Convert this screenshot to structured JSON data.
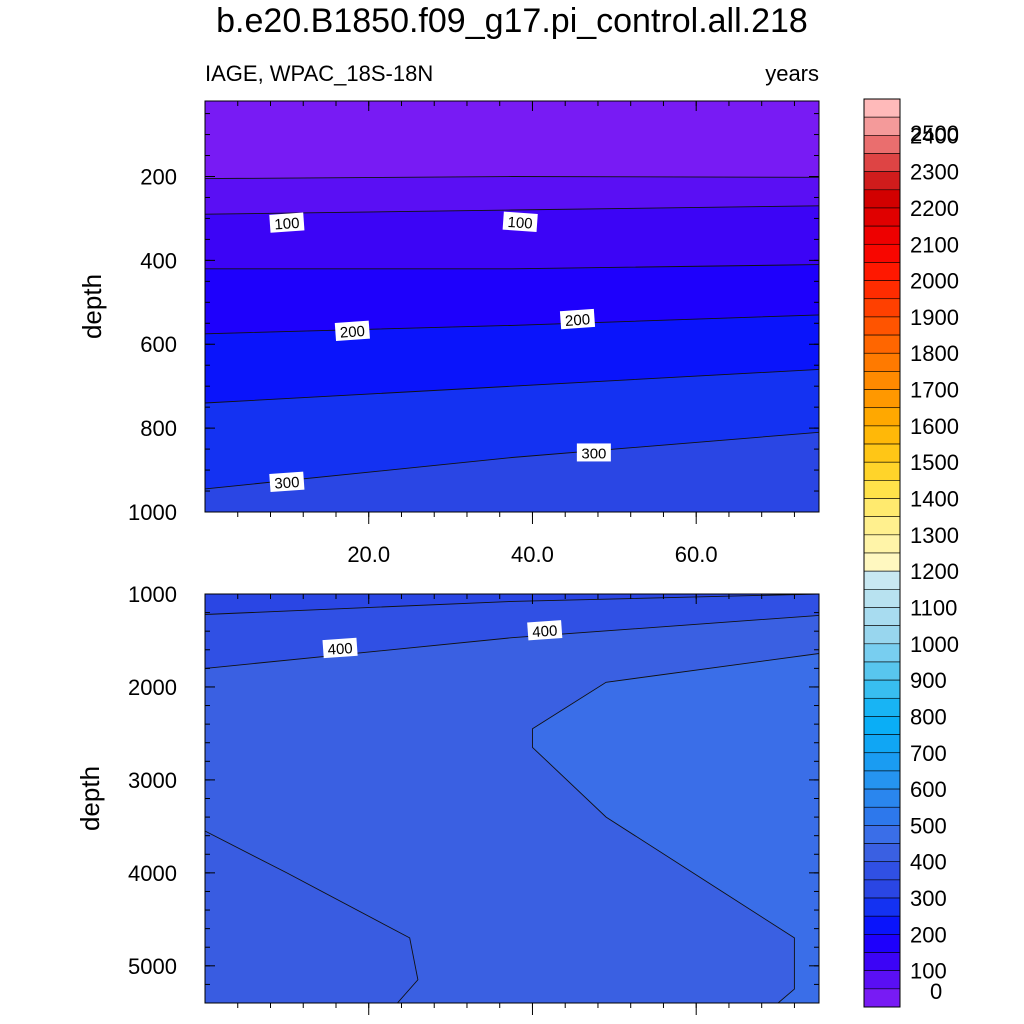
{
  "chart_data": {
    "type": "contour",
    "title": "b.e20.B1850.f09_g17.pi_control.all.218",
    "variable_label": "IAGE, WPAC_18S-18N",
    "units_label": "years",
    "panels": [
      {
        "name": "upper",
        "ylabel": "depth",
        "xlim": [
          0,
          75
        ],
        "ylim": [
          1000,
          20
        ],
        "x_ticks": [
          20.0,
          40.0,
          60.0
        ],
        "x_tick_labels": [
          "20.0",
          "40.0",
          "60.0"
        ],
        "y_ticks": [
          200,
          400,
          600,
          800,
          1000
        ],
        "contour_labels": [
          "100",
          "100",
          "200",
          "200",
          "300",
          "300"
        ],
        "contour_lines": [
          {
            "level": 50,
            "points": [
              [
                0,
                205
              ],
              [
                37.5,
                200
              ],
              [
                75,
                202
              ]
            ]
          },
          {
            "level": 100,
            "points": [
              [
                0,
                290
              ],
              [
                37.5,
                280
              ],
              [
                75,
                270
              ]
            ]
          },
          {
            "level": 150,
            "points": [
              [
                0,
                420
              ],
              [
                37.5,
                420
              ],
              [
                75,
                410
              ]
            ]
          },
          {
            "level": 200,
            "points": [
              [
                0,
                575
              ],
              [
                37.5,
                555
              ],
              [
                75,
                530
              ]
            ]
          },
          {
            "level": 250,
            "points": [
              [
                0,
                740
              ],
              [
                37.5,
                700
              ],
              [
                75,
                660
              ]
            ]
          },
          {
            "level": 300,
            "points": [
              [
                0,
                945
              ],
              [
                37.5,
                870
              ],
              [
                75,
                810
              ]
            ]
          }
        ]
      },
      {
        "name": "lower",
        "ylabel": "depth",
        "xlim": [
          0,
          75
        ],
        "ylim": [
          1000,
          5400
        ],
        "y_ticks": [
          1000,
          2000,
          3000,
          4000,
          5000
        ],
        "contour_labels": [
          "400",
          "400"
        ],
        "contour_lines": [
          {
            "level": 350,
            "points": [
              [
                0,
                1220
              ],
              [
                37.5,
                1080
              ],
              [
                75,
                1000
              ]
            ]
          },
          {
            "level": 400,
            "points": [
              [
                0,
                1800
              ],
              [
                37.5,
                1470
              ],
              [
                75,
                1230
              ]
            ]
          },
          {
            "level": 450,
            "points": [
              [
                75,
                1640
              ],
              [
                49,
                1950
              ],
              [
                40,
                2450
              ],
              [
                40,
                2650
              ],
              [
                49,
                3400
              ],
              [
                72,
                4700
              ],
              [
                72,
                5250
              ],
              [
                70,
                5400
              ]
            ]
          },
          {
            "level": 450,
            "points": [
              [
                0,
                3550
              ],
              [
                10,
                4000
              ],
              [
                25,
                4700
              ],
              [
                26,
                5150
              ],
              [
                23.5,
                5400
              ]
            ]
          }
        ]
      }
    ],
    "colorbar": {
      "levels": [
        0,
        50,
        100,
        150,
        200,
        250,
        300,
        350,
        400,
        450,
        500,
        550,
        600,
        650,
        700,
        750,
        800,
        850,
        900,
        950,
        1000,
        1050,
        1100,
        1150,
        1200,
        1250,
        1300,
        1350,
        1400,
        1450,
        1500,
        1550,
        1600,
        1650,
        1700,
        1750,
        1800,
        1850,
        1900,
        1950,
        2000,
        2050,
        2100,
        2150,
        2200,
        2250,
        2300,
        2350,
        2400,
        2450,
        2500
      ],
      "tick_labels": [
        "0",
        "100",
        "200",
        "300",
        "400",
        "500",
        "600",
        "700",
        "800",
        "900",
        "1000",
        "1100",
        "1200",
        "1300",
        "1400",
        "1500",
        "1600",
        "1700",
        "1800",
        "1900",
        "2000",
        "2100",
        "2200",
        "2300",
        "2400",
        "2500"
      ],
      "colors": [
        "#781bf4",
        "#5a0ff4",
        "#3c04f6",
        "#1e00fc",
        "#0a14fb",
        "#1432f2",
        "#2a46e4",
        "#3050e4",
        "#3a60e2",
        "#3a6ee8",
        "#2d78ec",
        "#2a86ee",
        "#2594f0",
        "#1a9cf2",
        "#10a6f4",
        "#0aaef6",
        "#18b4f4",
        "#38bef0",
        "#58c6ee",
        "#78cef0",
        "#98d6ee",
        "#a8dcf0",
        "#b8e2f0",
        "#c8e8f2",
        "#fff8c0",
        "#fff4a8",
        "#fff08e",
        "#ffea6e",
        "#ffe24a",
        "#ffd42a",
        "#ffc616",
        "#ffb808",
        "#ffa800",
        "#ff9800",
        "#ff8a00",
        "#ff7a00",
        "#ff6600",
        "#ff5400",
        "#ff4000",
        "#ff2c00",
        "#ff1800",
        "#f80600",
        "#ee0000",
        "#e00000",
        "#d20000",
        "#d01c1c",
        "#de4444",
        "#ea6e6e",
        "#f49a9a",
        "#ffbaba"
      ]
    }
  }
}
